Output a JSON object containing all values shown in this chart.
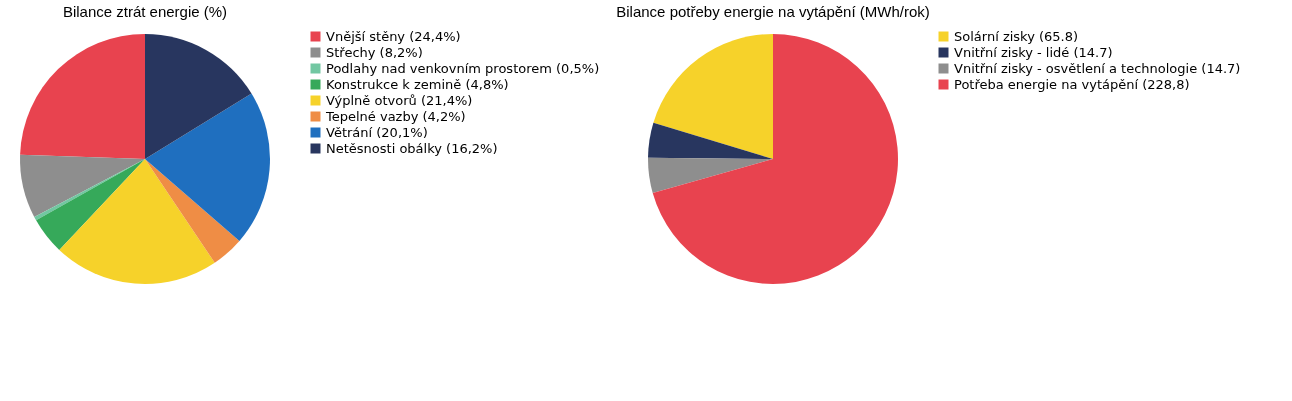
{
  "chart_data": [
    {
      "type": "pie",
      "title": "Bilance ztrát energie (%)",
      "legend": "right",
      "categories": [
        "Vnější stěny (24,4%)",
        "Střechy (8,2%)",
        "Podlahy nad venkovním prostorem (0,5%)",
        "Konstrukce k zemině (4,8%)",
        "Výplně otvorů (21,4%)",
        "Tepelné vazby (4,2%)",
        "Větrání (20,1%)",
        "Netěsnosti obálky (16,2%)"
      ],
      "values": [
        24.4,
        8.2,
        0.5,
        4.8,
        21.4,
        4.2,
        20.1,
        16.2
      ],
      "colors": [
        "#e8434f",
        "#8e8e8e",
        "#72c7a2",
        "#36a95a",
        "#f6d22a",
        "#ef8d45",
        "#1f6fbf",
        "#28365f"
      ]
    },
    {
      "type": "pie",
      "title": "Bilance potřeby energie na vytápění (MWh/rok)",
      "legend": "right",
      "categories": [
        "Solární zisky (65.8)",
        "Vnitřní zisky - lidé (14.7)",
        "Vnitřní zisky - osvětlení a technologie (14.7)",
        "Potřeba energie na vytápění (228,8)"
      ],
      "values": [
        65.8,
        14.7,
        14.7,
        228.8
      ],
      "colors": [
        "#f6d22a",
        "#28365f",
        "#8e8e8e",
        "#e8434f"
      ]
    }
  ]
}
